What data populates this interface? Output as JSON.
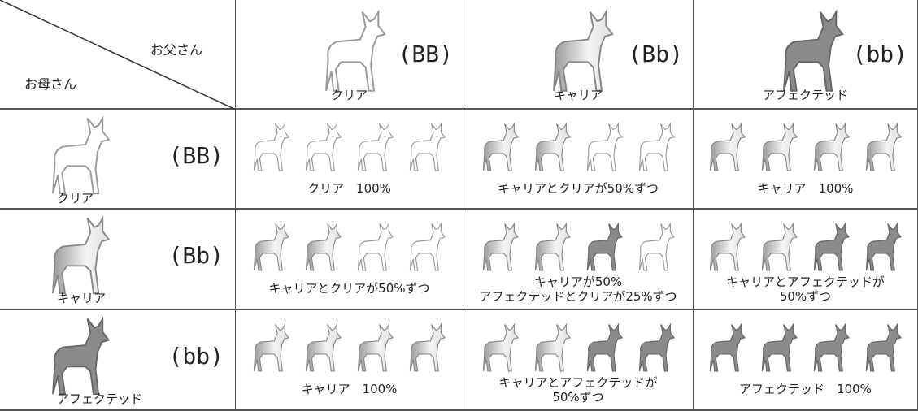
{
  "corner": {
    "father": "お父さん",
    "mother": "お母さん"
  },
  "columns": [
    {
      "genotype": "(BB)",
      "label": "クリア"
    },
    {
      "genotype": "(Bb)",
      "label": "キャリア"
    },
    {
      "genotype": "(bb)",
      "label": "アフェクテッド"
    }
  ],
  "rows": [
    {
      "genotype": "(BB)",
      "label": "クリア",
      "cells": [
        [
          "クリア　100%"
        ],
        [
          "キャリアとクリアが50%ずつ"
        ],
        [
          "キャリア　100%"
        ]
      ]
    },
    {
      "genotype": "(Bb)",
      "label": "キャリア",
      "cells": [
        [
          "キャリアとクリアが50%ずつ"
        ],
        [
          "キャリアが50%",
          "アフェクテッドとクリアが25%ずつ"
        ],
        [
          "キャリアとアフェクテッドが",
          "50%ずつ"
        ]
      ]
    },
    {
      "genotype": "(bb)",
      "label": "アフェクテッド",
      "cells": [
        [
          "キャリア　100%"
        ],
        [
          "キャリアとアフェクテッドが",
          "50%ずつ"
        ],
        [
          "アフェクテッド　100%"
        ]
      ]
    }
  ]
}
